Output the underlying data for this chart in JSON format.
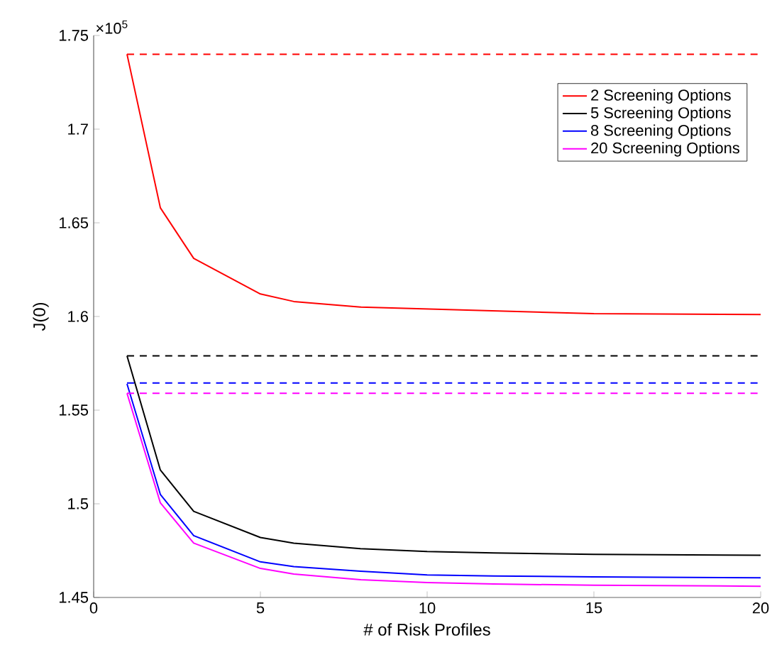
{
  "chart_data": {
    "type": "line",
    "xlabel": "# of Risk Profiles",
    "ylabel": "J(0)",
    "x": [
      1,
      2,
      3,
      5,
      6,
      8,
      10,
      12,
      15,
      20
    ],
    "series": [
      {
        "name": "2 Screening Options",
        "color": "#ff0000",
        "values": [
          1.74,
          1.658,
          1.631,
          1.612,
          1.608,
          1.605,
          1.604,
          1.603,
          1.6015,
          1.601
        ]
      },
      {
        "name": "5 Screening Options",
        "color": "#000000",
        "values": [
          1.579,
          1.518,
          1.496,
          1.482,
          1.479,
          1.476,
          1.4745,
          1.4738,
          1.473,
          1.4725
        ]
      },
      {
        "name": "8 Screening Options",
        "color": "#0000ff",
        "values": [
          1.564,
          1.505,
          1.483,
          1.469,
          1.4665,
          1.464,
          1.462,
          1.4615,
          1.461,
          1.4605
        ]
      },
      {
        "name": "20 Screening Options",
        "color": "#ff00ff",
        "values": [
          1.559,
          1.5005,
          1.479,
          1.4655,
          1.4625,
          1.4595,
          1.458,
          1.4572,
          1.4565,
          1.456
        ]
      },
      {
        "color": "#ff0000",
        "line_style": "dashed",
        "values": [
          1.74,
          1.74,
          1.74,
          1.74,
          1.74,
          1.74,
          1.74,
          1.74,
          1.74,
          1.74
        ]
      },
      {
        "color": "#000000",
        "line_style": "dashed",
        "values": [
          1.579,
          1.579,
          1.579,
          1.579,
          1.579,
          1.579,
          1.579,
          1.579,
          1.579,
          1.579
        ]
      },
      {
        "color": "#0000ff",
        "line_style": "dashed",
        "values": [
          1.5645,
          1.5645,
          1.5645,
          1.5645,
          1.5645,
          1.5645,
          1.5645,
          1.5645,
          1.5645,
          1.5645
        ]
      },
      {
        "color": "#ff00ff",
        "line_style": "dashed",
        "values": [
          1.559,
          1.559,
          1.559,
          1.559,
          1.559,
          1.559,
          1.559,
          1.559,
          1.559,
          1.559
        ]
      }
    ],
    "xlim": [
      0,
      20
    ],
    "ylim": [
      1.45,
      1.75
    ],
    "xticks": [
      0,
      5,
      10,
      15,
      20
    ],
    "yticks": [
      1.45,
      1.5,
      1.55,
      1.6,
      1.65,
      1.7,
      1.75
    ],
    "annotations": [
      "×10$^{5}$"
    ],
    "legend": "top right",
    "grid": false
  }
}
